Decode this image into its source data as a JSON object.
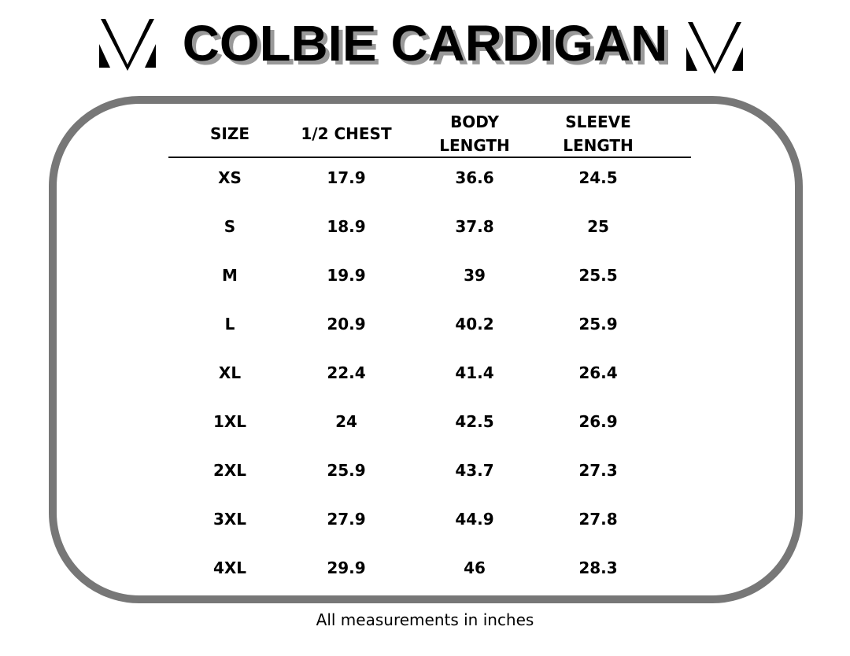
{
  "title": "COLBIE CARDIGAN",
  "logo": {
    "left": "logo-icon",
    "right": "logo-icon"
  },
  "table": {
    "headers": [
      [
        "SIZE"
      ],
      [
        "1/2 CHEST"
      ],
      [
        "BODY",
        "LENGTH"
      ],
      [
        "SLEEVE",
        "LENGTH"
      ]
    ],
    "rows": [
      [
        "XS",
        "17.9",
        "36.6",
        "24.5"
      ],
      [
        "S",
        "18.9",
        "37.8",
        "25"
      ],
      [
        "M",
        "19.9",
        "39",
        "25.5"
      ],
      [
        "L",
        "20.9",
        "40.2",
        "25.9"
      ],
      [
        "XL",
        "22.4",
        "41.4",
        "26.4"
      ],
      [
        "1XL",
        "24",
        "42.5",
        "26.9"
      ],
      [
        "2XL",
        "25.9",
        "43.7",
        "27.3"
      ],
      [
        "3XL",
        "27.9",
        "44.9",
        "27.8"
      ],
      [
        "4XL",
        "29.9",
        "46",
        "28.3"
      ]
    ]
  },
  "footer": "All measurements in inches",
  "colors": {
    "frame": "#777777",
    "shadow": "#999999"
  }
}
